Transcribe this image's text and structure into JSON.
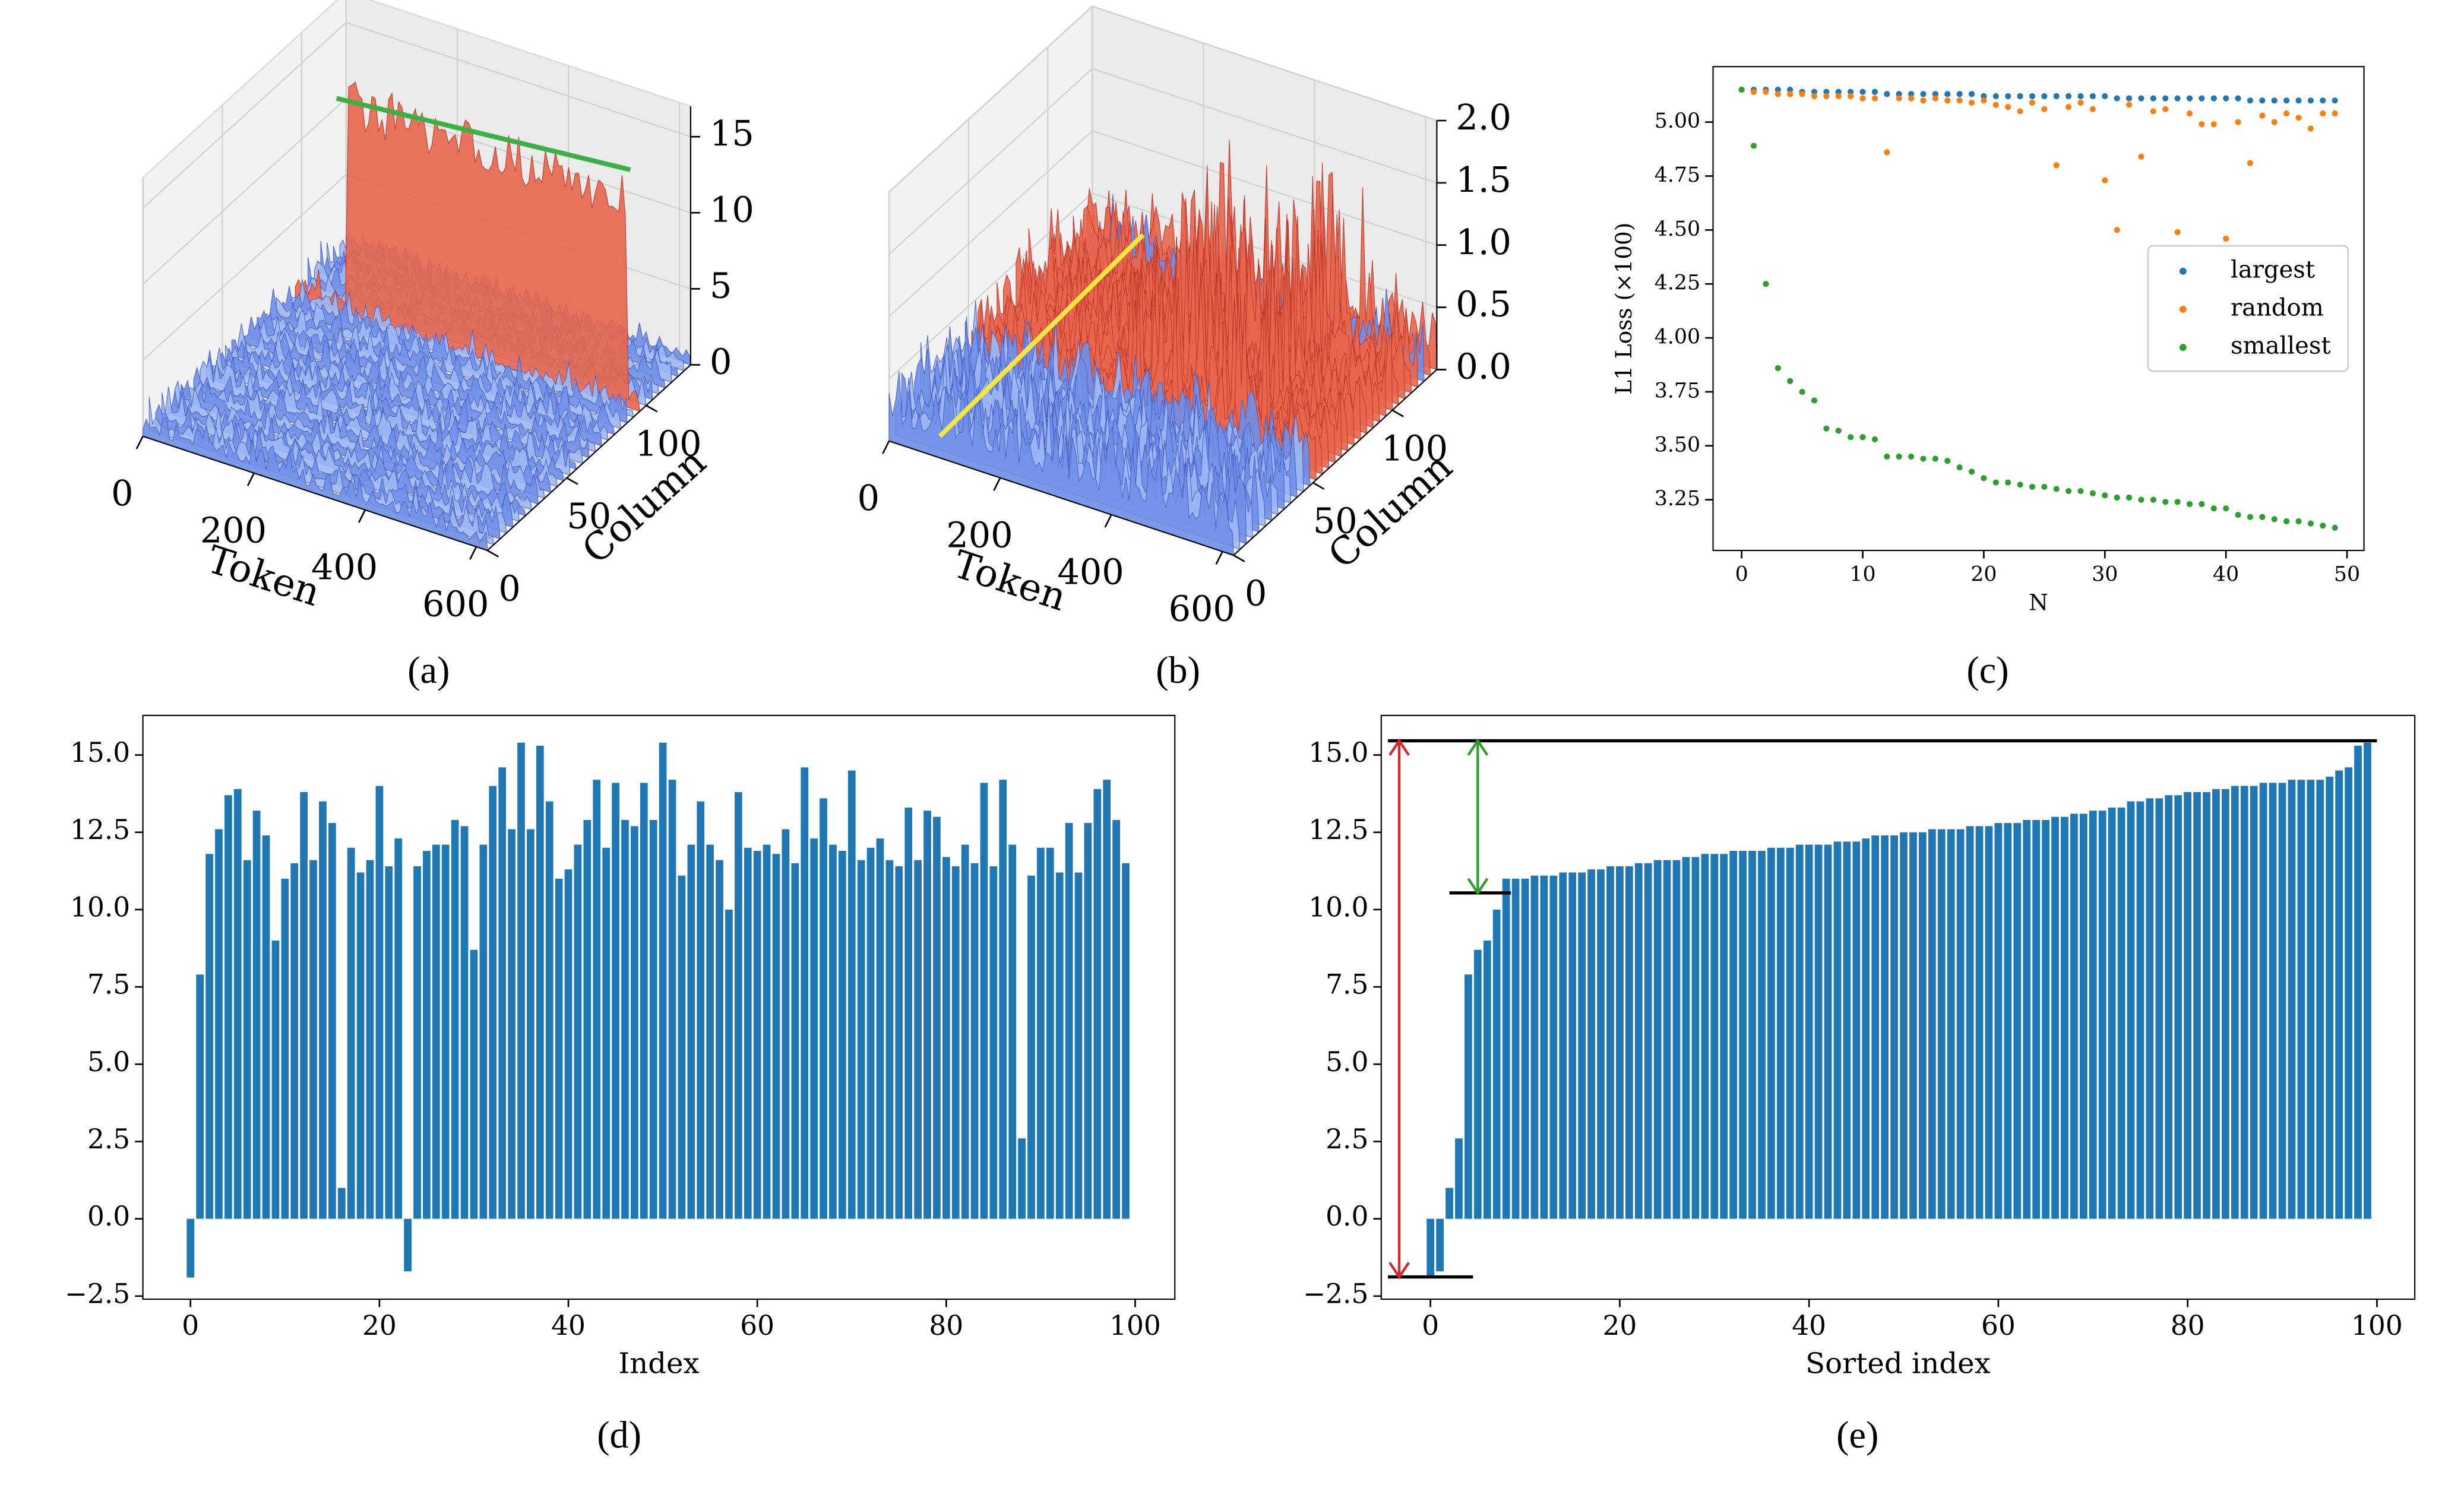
{
  "chart_data": [
    {
      "type": "surface3d",
      "caption": "(a)",
      "xlabel": "Token",
      "ylabel": "Column",
      "xlim": [
        0,
        620
      ],
      "ylim": [
        0,
        128
      ],
      "zlim": [
        0,
        17
      ],
      "xticks": [
        0,
        200,
        400,
        600
      ],
      "yticks": [
        0,
        50,
        100
      ],
      "zticks": [
        0,
        5,
        10,
        15
      ]
    },
    {
      "type": "surface3d",
      "caption": "(b)",
      "xlabel": "Token",
      "ylabel": "Column",
      "xlim": [
        0,
        620
      ],
      "ylim": [
        0,
        128
      ],
      "zlim": [
        0,
        2
      ],
      "xticks": [
        0,
        200,
        400,
        600
      ],
      "yticks": [
        0,
        50,
        100
      ],
      "zticks": [
        {
          "value": 0,
          "label": "0.0"
        },
        0.5,
        {
          "value": 1,
          "label": "1.0"
        },
        1.5,
        {
          "value": 2,
          "label": "2.0"
        }
      ]
    },
    {
      "type": "scatter",
      "caption": "(c)",
      "xlabel": "N",
      "ylabel": "L1 Loss (×100)",
      "xlim": [
        -2.36,
        51.4
      ],
      "ylim": [
        3.015,
        5.257
      ],
      "xticks": [
        0,
        10,
        20,
        30,
        40,
        50
      ],
      "yticks": [
        3.25,
        {
          "value": 3.5,
          "label": "3.50"
        },
        3.75,
        {
          "value": 4,
          "label": "4.00"
        },
        4.25,
        {
          "value": 4.5,
          "label": "4.50"
        },
        4.75,
        {
          "value": 5,
          "label": "5.00"
        }
      ],
      "legend": "center right",
      "x": [
        0,
        1,
        2,
        3,
        4,
        5,
        6,
        7,
        8,
        9,
        10,
        11,
        12,
        13,
        14,
        15,
        16,
        17,
        18,
        19,
        20,
        21,
        22,
        23,
        24,
        25,
        26,
        27,
        28,
        29,
        30,
        31,
        32,
        33,
        34,
        35,
        36,
        37,
        38,
        39,
        40,
        41,
        42,
        43,
        44,
        45,
        46,
        47,
        48,
        49
      ],
      "series": [
        {
          "name": "largest",
          "color": "#1f77b4",
          "values": [
            5.15,
            5.15,
            5.15,
            5.15,
            5.15,
            5.14,
            5.14,
            5.14,
            5.14,
            5.14,
            5.14,
            5.14,
            5.13,
            5.13,
            5.13,
            5.13,
            5.13,
            5.13,
            5.13,
            5.13,
            5.12,
            5.12,
            5.12,
            5.12,
            5.12,
            5.12,
            5.12,
            5.12,
            5.12,
            5.12,
            5.12,
            5.11,
            5.11,
            5.11,
            5.11,
            5.11,
            5.11,
            5.11,
            5.11,
            5.11,
            5.11,
            5.11,
            5.1,
            5.1,
            5.1,
            5.1,
            5.1,
            5.1,
            5.1,
            5.1
          ]
        },
        {
          "name": "random",
          "color": "#ff7f0e",
          "values": [
            5.15,
            5.14,
            5.14,
            5.13,
            5.13,
            5.13,
            5.12,
            5.12,
            5.12,
            5.12,
            5.11,
            5.11,
            4.86,
            5.11,
            5.11,
            5.1,
            5.11,
            5.1,
            5.1,
            5.09,
            5.1,
            5.08,
            5.07,
            5.05,
            5.09,
            5.06,
            4.8,
            5.07,
            5.09,
            5.06,
            4.73,
            4.5,
            5.08,
            4.84,
            5.05,
            5.06,
            4.49,
            5.04,
            4.99,
            4.99,
            4.46,
            5.0,
            4.81,
            5.03,
            5.0,
            5.04,
            5.02,
            4.97,
            5.04,
            5.04
          ]
        },
        {
          "name": "smallest",
          "color": "#2ca02c",
          "values": [
            5.15,
            4.89,
            4.25,
            3.86,
            3.8,
            3.75,
            3.71,
            3.58,
            3.57,
            3.54,
            3.54,
            3.53,
            3.45,
            3.45,
            3.45,
            3.44,
            3.44,
            3.43,
            3.4,
            3.38,
            3.35,
            3.33,
            3.33,
            3.32,
            3.31,
            3.31,
            3.3,
            3.29,
            3.29,
            3.28,
            3.27,
            3.26,
            3.26,
            3.25,
            3.25,
            3.24,
            3.24,
            3.23,
            3.23,
            3.21,
            3.21,
            3.18,
            3.17,
            3.17,
            3.16,
            3.15,
            3.15,
            3.14,
            3.13,
            3.12
          ]
        }
      ]
    },
    {
      "type": "bar",
      "caption": "(d)",
      "xlabel": "Index",
      "color": "#1f77b4",
      "xlim": [
        -5.04,
        104.2
      ],
      "ylim": [
        -2.6,
        16.28
      ],
      "xticks": [
        0,
        20,
        40,
        60,
        80,
        100
      ],
      "yticks": [
        {
          "value": -2.5,
          "label": "−2.5"
        },
        {
          "value": 0,
          "label": "0.0"
        },
        2.5,
        {
          "value": 5,
          "label": "5.0"
        },
        7.5,
        {
          "value": 10,
          "label": "10.0"
        },
        12.5,
        {
          "value": 15,
          "label": "15.0"
        }
      ],
      "x": [
        0,
        1,
        2,
        3,
        4,
        5,
        6,
        7,
        8,
        9,
        10,
        11,
        12,
        13,
        14,
        15,
        16,
        17,
        18,
        19,
        20,
        21,
        22,
        23,
        24,
        25,
        26,
        27,
        28,
        29,
        30,
        31,
        32,
        33,
        34,
        35,
        36,
        37,
        38,
        39,
        40,
        41,
        42,
        43,
        44,
        45,
        46,
        47,
        48,
        49,
        50,
        51,
        52,
        53,
        54,
        55,
        56,
        57,
        58,
        59,
        60,
        61,
        62,
        63,
        64,
        65,
        66,
        67,
        68,
        69,
        70,
        71,
        72,
        73,
        74,
        75,
        76,
        77,
        78,
        79,
        80,
        81,
        82,
        83,
        84,
        85,
        86,
        87,
        88,
        89,
        90,
        91,
        92,
        93,
        94,
        95,
        96,
        97,
        98,
        99
      ],
      "values": [
        -1.9,
        7.9,
        11.8,
        12.6,
        13.7,
        13.9,
        11.6,
        13.2,
        12.4,
        9.0,
        11.0,
        11.5,
        13.8,
        11.6,
        13.5,
        12.8,
        1.0,
        12.0,
        11.2,
        11.6,
        14.0,
        11.4,
        12.3,
        -1.7,
        11.4,
        11.9,
        12.1,
        12.1,
        12.9,
        12.7,
        8.7,
        12.1,
        14.0,
        14.6,
        12.6,
        15.4,
        12.6,
        15.3,
        13.5,
        11.0,
        11.3,
        12.1,
        12.9,
        14.2,
        12.0,
        14.1,
        12.9,
        12.7,
        14.1,
        12.9,
        15.4,
        14.2,
        11.1,
        12.1,
        13.5,
        12.1,
        11.6,
        10.0,
        13.8,
        12.0,
        11.9,
        12.1,
        11.8,
        12.6,
        11.5,
        14.6,
        12.3,
        13.6,
        12.1,
        11.9,
        14.5,
        11.6,
        12.0,
        12.3,
        11.6,
        11.4,
        13.3,
        11.6,
        13.2,
        13.0,
        11.7,
        11.4,
        12.1,
        11.5,
        14.1,
        11.4,
        14.2,
        12.1,
        2.6,
        11.1,
        12.0,
        12.0,
        11.2,
        12.8,
        11.2,
        12.8,
        13.9,
        14.2,
        12.9,
        11.5
      ]
    },
    {
      "type": "bar",
      "caption": "(e)",
      "xlabel": "Sorted index",
      "color": "#1f77b4",
      "xlim": [
        -5.2,
        104.0
      ],
      "ylim": [
        -2.6,
        16.28
      ],
      "xticks": [
        0,
        20,
        40,
        60,
        80,
        100
      ],
      "yticks": [
        {
          "value": -2.5,
          "label": "−2.5"
        },
        {
          "value": 0,
          "label": "0.0"
        },
        2.5,
        {
          "value": 5,
          "label": "5.0"
        },
        7.5,
        {
          "value": 10,
          "label": "10.0"
        },
        12.5,
        {
          "value": 15,
          "label": "15.0"
        }
      ],
      "x": [
        0,
        1,
        2,
        3,
        4,
        5,
        6,
        7,
        8,
        9,
        10,
        11,
        12,
        13,
        14,
        15,
        16,
        17,
        18,
        19,
        20,
        21,
        22,
        23,
        24,
        25,
        26,
        27,
        28,
        29,
        30,
        31,
        32,
        33,
        34,
        35,
        36,
        37,
        38,
        39,
        40,
        41,
        42,
        43,
        44,
        45,
        46,
        47,
        48,
        49,
        50,
        51,
        52,
        53,
        54,
        55,
        56,
        57,
        58,
        59,
        60,
        61,
        62,
        63,
        64,
        65,
        66,
        67,
        68,
        69,
        70,
        71,
        72,
        73,
        74,
        75,
        76,
        77,
        78,
        79,
        80,
        81,
        82,
        83,
        84,
        85,
        86,
        87,
        88,
        89,
        90,
        91,
        92,
        93,
        94,
        95,
        96,
        97,
        98,
        99
      ],
      "values": [
        -1.9,
        -1.7,
        1.0,
        2.6,
        7.9,
        8.7,
        9.0,
        10.0,
        11.0,
        11.0,
        11.0,
        11.1,
        11.1,
        11.1,
        11.2,
        11.2,
        11.2,
        11.3,
        11.3,
        11.4,
        11.4,
        11.4,
        11.5,
        11.5,
        11.6,
        11.6,
        11.6,
        11.7,
        11.7,
        11.8,
        11.8,
        11.8,
        11.9,
        11.9,
        11.9,
        11.9,
        12.0,
        12.0,
        12.0,
        12.1,
        12.1,
        12.1,
        12.1,
        12.2,
        12.2,
        12.2,
        12.3,
        12.4,
        12.4,
        12.4,
        12.5,
        12.5,
        12.5,
        12.6,
        12.6,
        12.6,
        12.6,
        12.7,
        12.7,
        12.7,
        12.8,
        12.8,
        12.8,
        12.9,
        12.9,
        12.9,
        13.0,
        13.0,
        13.1,
        13.1,
        13.2,
        13.2,
        13.3,
        13.3,
        13.5,
        13.5,
        13.6,
        13.6,
        13.7,
        13.7,
        13.8,
        13.8,
        13.8,
        13.9,
        13.9,
        14.0,
        14.0,
        14.0,
        14.1,
        14.1,
        14.1,
        14.2,
        14.2,
        14.2,
        14.2,
        14.3,
        14.5,
        14.6,
        15.3,
        15.4
      ],
      "lines": [
        {
          "color": "#000000",
          "x": [
            -4.5,
            100
          ],
          "y": [
            15.46,
            15.46
          ]
        },
        {
          "color": "#000000",
          "x": [
            2,
            8.5
          ],
          "y": [
            10.54,
            10.54
          ]
        },
        {
          "color": "#000000",
          "x": [
            -4.5,
            4.5
          ],
          "y": [
            -1.88,
            -1.88
          ]
        }
      ],
      "arrows": [
        {
          "color": "#d62728",
          "x": [
            -3.3,
            -3.3
          ],
          "y": [
            -1.88,
            15.46
          ]
        },
        {
          "color": "#2ca02c",
          "x": [
            5,
            5
          ],
          "y": [
            15.46,
            10.54
          ]
        }
      ]
    }
  ]
}
